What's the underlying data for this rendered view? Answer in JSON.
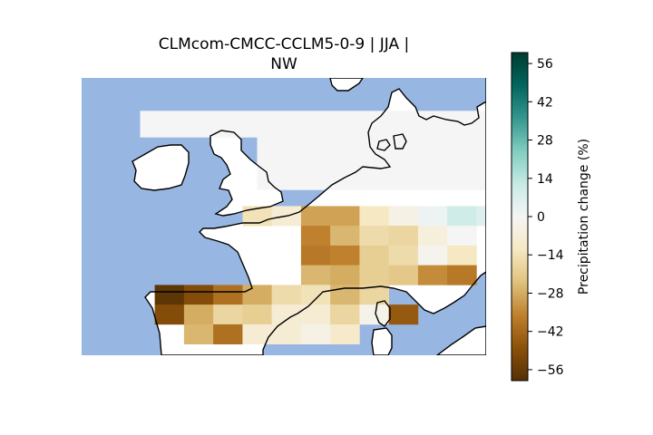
{
  "chart_data": {
    "type": "heatmap",
    "title_lines": [
      "CLMcom-CMCC-CCLM5-0-9 | JJA |",
      "NW"
    ],
    "colorbar": {
      "label": "Precipitation change (%)",
      "range": [
        -60,
        60
      ],
      "ticks": [
        56,
        42,
        28,
        14,
        0,
        -14,
        -28,
        -42,
        -56
      ],
      "tick_labels": [
        "56",
        "42",
        "28",
        "14",
        "0",
        "−14",
        "−28",
        "−42",
        "−56"
      ],
      "colormap": "BrBG"
    },
    "map": {
      "sea_color": "#98b6e2",
      "uncolored_land_color": "#ffffff",
      "coastline_color": "#000000"
    },
    "grid_cells": [
      {
        "lon": -9,
        "lat": 55.5,
        "value": 0
      },
      {
        "lon": -7,
        "lat": 55.5,
        "value": 0
      },
      {
        "lon": -5,
        "lat": 55.5,
        "value": 0
      },
      {
        "lon": -3,
        "lat": 55.5,
        "value": 0
      },
      {
        "lon": -1,
        "lat": 55.5,
        "value": 0
      },
      {
        "lon": 1,
        "lat": 55.5,
        "value": 0
      },
      {
        "lon": 3,
        "lat": 55.5,
        "value": 0
      },
      {
        "lon": 5,
        "lat": 55.5,
        "value": 0
      },
      {
        "lon": 7,
        "lat": 55.5,
        "value": 0
      },
      {
        "lon": 9,
        "lat": 55.5,
        "value": 0
      },
      {
        "lon": -3,
        "lat": 53.5,
        "value": 0
      },
      {
        "lon": -1,
        "lat": 53.5,
        "value": 0
      },
      {
        "lon": 1,
        "lat": 53.5,
        "value": 0
      },
      {
        "lon": 3,
        "lat": 53.5,
        "value": 0
      },
      {
        "lon": 5,
        "lat": 53.5,
        "value": 0
      },
      {
        "lon": 7,
        "lat": 53.5,
        "value": 0
      },
      {
        "lon": 9,
        "lat": 53.5,
        "value": 0
      },
      {
        "lon": -3,
        "lat": 51.5,
        "value": 0
      },
      {
        "lon": -1,
        "lat": 51.5,
        "value": 0
      },
      {
        "lon": 1,
        "lat": 51.5,
        "value": 0
      },
      {
        "lon": 3,
        "lat": 51.5,
        "value": 0
      },
      {
        "lon": 5,
        "lat": 51.5,
        "value": 0
      },
      {
        "lon": 7,
        "lat": 51.5,
        "value": 0
      },
      {
        "lon": -4,
        "lat": 48.5,
        "value": -14
      },
      {
        "lon": -2.5,
        "lat": 48.5,
        "value": -8
      },
      {
        "lon": -1,
        "lat": 48.5,
        "value": -30
      },
      {
        "lon": 0.5,
        "lat": 48.5,
        "value": -30
      },
      {
        "lon": 2,
        "lat": 48.5,
        "value": -12
      },
      {
        "lon": 3.5,
        "lat": 48.5,
        "value": -4
      },
      {
        "lon": 5,
        "lat": 48.5,
        "value": 2
      },
      {
        "lon": 6.5,
        "lat": 48.5,
        "value": 10
      },
      {
        "lon": 8,
        "lat": 48.5,
        "value": 6
      },
      {
        "lon": -1,
        "lat": 47,
        "value": -36
      },
      {
        "lon": 0.5,
        "lat": 47,
        "value": -26
      },
      {
        "lon": 2,
        "lat": 47,
        "value": -16
      },
      {
        "lon": 3.5,
        "lat": 47,
        "value": -18
      },
      {
        "lon": 5,
        "lat": 47,
        "value": -6
      },
      {
        "lon": 6.5,
        "lat": 47,
        "value": 0
      },
      {
        "lon": -1,
        "lat": 45.5,
        "value": -38
      },
      {
        "lon": 0.5,
        "lat": 45.5,
        "value": -36
      },
      {
        "lon": 2,
        "lat": 45.5,
        "value": -20
      },
      {
        "lon": 3.5,
        "lat": 45.5,
        "value": -16
      },
      {
        "lon": 5,
        "lat": 45.5,
        "value": -2
      },
      {
        "lon": 6.5,
        "lat": 45.5,
        "value": -12
      },
      {
        "lon": -1,
        "lat": 44,
        "value": -26
      },
      {
        "lon": 0.5,
        "lat": 44,
        "value": -28
      },
      {
        "lon": 2,
        "lat": 44,
        "value": -20
      },
      {
        "lon": 3.5,
        "lat": 44,
        "value": -22
      },
      {
        "lon": 5,
        "lat": 44,
        "value": -34
      },
      {
        "lon": 6.5,
        "lat": 44,
        "value": -38
      },
      {
        "lon": -8.5,
        "lat": 42.5,
        "value": -58
      },
      {
        "lon": -7,
        "lat": 42.5,
        "value": -50
      },
      {
        "lon": -5.5,
        "lat": 42.5,
        "value": -40
      },
      {
        "lon": -4,
        "lat": 42.5,
        "value": -28
      },
      {
        "lon": -2.5,
        "lat": 42.5,
        "value": -16
      },
      {
        "lon": -1,
        "lat": 42.5,
        "value": -14
      },
      {
        "lon": 0.5,
        "lat": 42.5,
        "value": -26
      },
      {
        "lon": 2,
        "lat": 42.5,
        "value": -18
      },
      {
        "lon": -8.5,
        "lat": 41,
        "value": -50
      },
      {
        "lon": -7,
        "lat": 41,
        "value": -28
      },
      {
        "lon": -5.5,
        "lat": 41,
        "value": -18
      },
      {
        "lon": -4,
        "lat": 41,
        "value": -20
      },
      {
        "lon": -2.5,
        "lat": 41,
        "value": -8
      },
      {
        "lon": -1,
        "lat": 41,
        "value": -8
      },
      {
        "lon": 0.5,
        "lat": 41,
        "value": -18
      },
      {
        "lon": 2,
        "lat": 41,
        "value": -3
      },
      {
        "lon": 3.5,
        "lat": 41,
        "value": -46
      },
      {
        "lon": -7,
        "lat": 39.5,
        "value": -26
      },
      {
        "lon": -5.5,
        "lat": 39.5,
        "value": -40
      },
      {
        "lon": -4,
        "lat": 39.5,
        "value": -8
      },
      {
        "lon": -2.5,
        "lat": 39.5,
        "value": -8
      },
      {
        "lon": -1,
        "lat": 39.5,
        "value": -4
      },
      {
        "lon": 0.5,
        "lat": 39.5,
        "value": -10
      }
    ]
  }
}
